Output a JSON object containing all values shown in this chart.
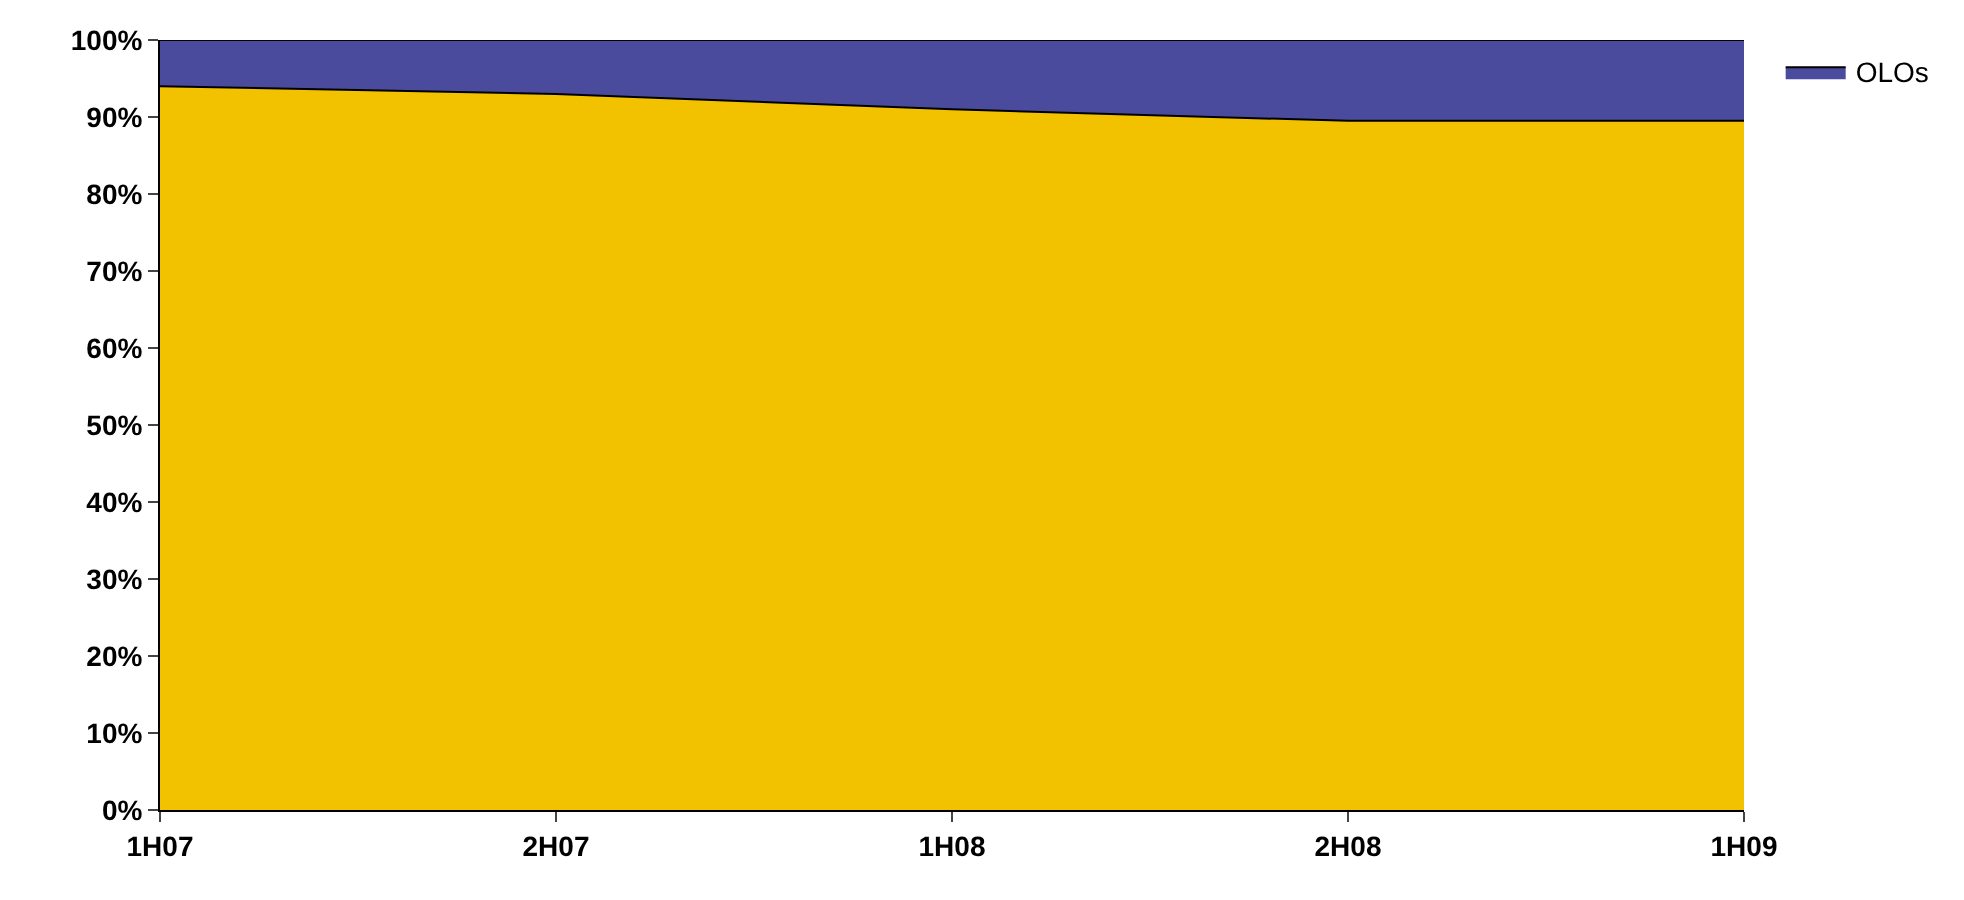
{
  "chart_data": {
    "type": "area",
    "stacked": true,
    "categories": [
      "1H07",
      "2H07",
      "1H08",
      "2H08",
      "1H09"
    ],
    "series": [
      {
        "color": "#f2c200",
        "values": [
          94,
          93,
          91,
          89.5,
          89.5
        ]
      },
      {
        "name": "OLOs",
        "color": "#4b4b9e",
        "values": [
          6,
          7,
          9,
          10.5,
          10.5
        ]
      }
    ],
    "ylim": [
      0,
      100
    ],
    "yticks": [
      {
        "value": 0,
        "label": "0%"
      },
      {
        "value": 10,
        "label": "10%"
      },
      {
        "value": 20,
        "label": "20%"
      },
      {
        "value": 30,
        "label": "30%"
      },
      {
        "value": 40,
        "label": "40%"
      },
      {
        "value": 50,
        "label": "50%"
      },
      {
        "value": 60,
        "label": "60%"
      },
      {
        "value": 70,
        "label": "70%"
      },
      {
        "value": 80,
        "label": "80%"
      },
      {
        "value": 90,
        "label": "90%"
      },
      {
        "value": 100,
        "label": "100%"
      }
    ],
    "legend": "top right"
  }
}
